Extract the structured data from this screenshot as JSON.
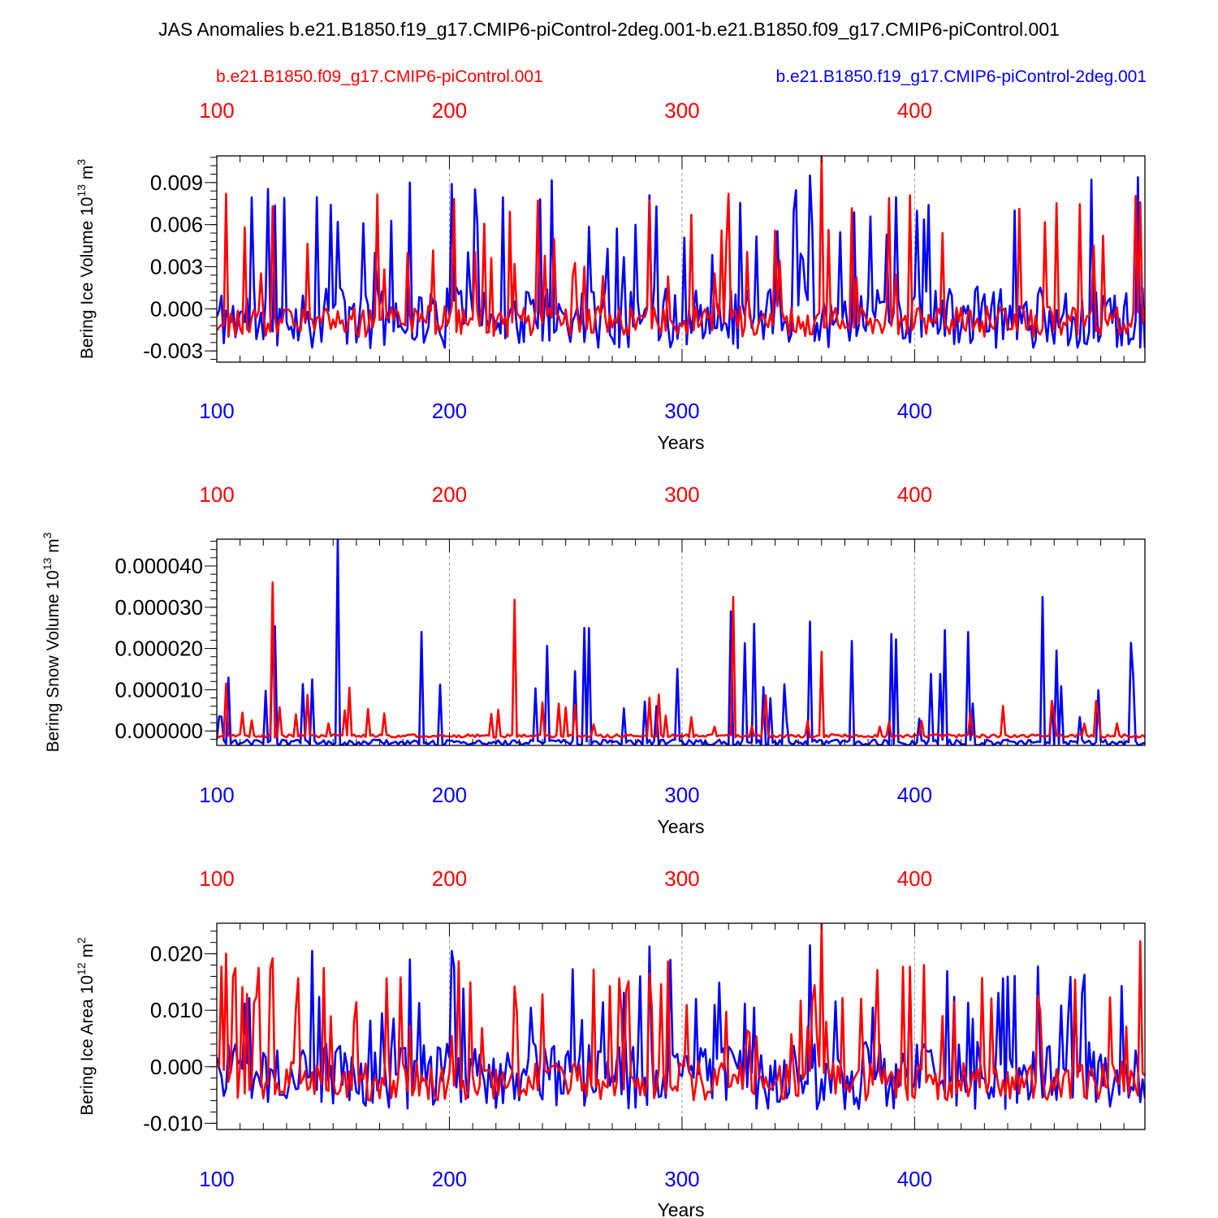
{
  "title": "JAS Anomalies b.e21.B1850.f19_g17.CMIP6-piControl-2deg.001-b.e21.B1850.f09_g17.CMIP6-piControl.001",
  "legend": {
    "red_label": "b.e21.B1850.f09_g17.CMIP6-piControl.001",
    "blue_label": "b.e21.B1850.f19_g17.CMIP6-piControl-2deg.001"
  },
  "colors": {
    "red": "#ff0000",
    "blue": "#0000ff",
    "axis": "#000000",
    "grid": "#9a9a9a"
  },
  "chart_data": [
    {
      "type": "line",
      "ylabel": "Bering Ice Volume",
      "yunit": "10",
      "yunit_exp": "13",
      "yunit_tail": "m",
      "yunit_tail_exp": "3",
      "xlabel": "Years",
      "xlim": [
        100,
        499
      ],
      "ylim": [
        -0.0038,
        0.0109
      ],
      "yticks": [
        -0.003,
        0,
        0.003,
        0.006,
        0.009
      ],
      "ytick_labels": [
        "-0.003",
        "0.000",
        "0.003",
        "0.006",
        "0.009"
      ],
      "ytick_minor_step": 0.0006,
      "xticks": [
        100,
        200,
        300,
        400
      ],
      "xtick_labels": [
        "100",
        "200",
        "300",
        "400"
      ],
      "series": [
        {
          "name": "b.e21.B1850.f19_g17.CMIP6-piControl-2deg.001",
          "color": "blue",
          "seed": 11,
          "lo": -0.0038,
          "hi": 0.0095,
          "base": -0.0006,
          "spread": 0.0022,
          "pk": 0.095,
          "pkmin": 0.0035,
          "pkmax": 0.0095,
          "pin": [
            [
              183,
              0.009
            ],
            [
              201,
              0.0089
            ],
            [
              286,
              0.0081
            ],
            [
              355,
              0.0095
            ],
            [
              152,
              0.0062
            ]
          ]
        },
        {
          "name": "b.e21.B1850.f09_g17.CMIP6-piControl.001",
          "color": "red",
          "seed": 29,
          "lo": -0.0025,
          "hi": 0.0109,
          "base": -0.0009,
          "spread": 0.0011,
          "pk": 0.11,
          "pkmin": 0.002,
          "pkmax": 0.0082,
          "pin": [
            [
              104,
              0.0082
            ],
            [
              124,
              0.0073
            ],
            [
              320,
              0.0082
            ],
            [
              360,
              0.0109
            ],
            [
              398,
              0.0081
            ],
            [
              497,
              0.0076
            ],
            [
              228,
              0.0032
            ],
            [
              304,
              0.0067
            ]
          ]
        }
      ]
    },
    {
      "type": "line",
      "ylabel": "Bering Snow Volume",
      "yunit": "10",
      "yunit_exp": "13",
      "yunit_tail": "m",
      "yunit_tail_exp": "3",
      "xlabel": "Years",
      "xlim": [
        100,
        499
      ],
      "ylim": [
        -3.5e-06,
        4.65e-05
      ],
      "yticks": [
        0,
        1e-05,
        2e-05,
        3e-05,
        4e-05
      ],
      "ytick_labels": [
        "0.000000",
        "0.000010",
        "0.000020",
        "0.000030",
        "0.000040"
      ],
      "ytick_minor_step": 2e-06,
      "xticks": [
        100,
        200,
        300,
        400
      ],
      "xtick_labels": [
        "100",
        "200",
        "300",
        "400"
      ],
      "series": [
        {
          "name": "b.e21.B1850.f19_g17.CMIP6-piControl-2deg.001",
          "color": "blue",
          "seed": 43,
          "lo": -3.5e-06,
          "hi": 4.65e-05,
          "base": -2.8e-06,
          "spread": 7e-07,
          "pk": 0.12,
          "pkmin": 2e-06,
          "pkmax": 2.6e-05,
          "pin": [
            [
              152,
              4.65e-05
            ],
            [
              188,
              2.4e-05
            ],
            [
              321,
              2.9e-05
            ],
            [
              355,
              2.65e-05
            ],
            [
              423,
              2.4e-05
            ],
            [
              455,
              3.25e-05
            ],
            [
              254,
              1.45e-05
            ],
            [
              141,
              1.25e-05
            ],
            [
              390,
              2.35e-05
            ]
          ]
        },
        {
          "name": "b.e21.B1850.f09_g17.CMIP6-piControl.001",
          "color": "red",
          "seed": 57,
          "lo": -2e-06,
          "hi": 3.65e-05,
          "base": -1.2e-06,
          "spread": 4e-07,
          "pk": 0.08,
          "pkmin": 1e-06,
          "pkmax": 9e-06,
          "pin": [
            [
              124,
              3.6e-05
            ],
            [
              228,
              3.18e-05
            ],
            [
              322,
              3.25e-05
            ],
            [
              104,
              1.15e-05
            ],
            [
              360,
              1.92e-05
            ],
            [
              157,
              1.05e-05
            ]
          ]
        }
      ]
    },
    {
      "type": "line",
      "ylabel": "Bering Ice Area",
      "yunit": "10",
      "yunit_exp": "12",
      "yunit_tail": "m",
      "yunit_tail_exp": "2",
      "xlabel": "Years",
      "xlim": [
        100,
        499
      ],
      "ylim": [
        -0.0111,
        0.0254
      ],
      "yticks": [
        -0.01,
        0,
        0.01,
        0.02
      ],
      "ytick_labels": [
        "-0.010",
        "0.000",
        "0.010",
        "0.020"
      ],
      "ytick_minor_step": 0.002,
      "xticks": [
        100,
        200,
        300,
        400
      ],
      "xtick_labels": [
        "100",
        "200",
        "300",
        "400"
      ],
      "series": [
        {
          "name": "b.e21.B1850.f19_g17.CMIP6-piControl-2deg.001",
          "color": "blue",
          "seed": 71,
          "lo": -0.0111,
          "hi": 0.0215,
          "base": -0.0015,
          "spread": 0.006,
          "pk": 0.1,
          "pkmin": 0.008,
          "pkmax": 0.019,
          "pin": [
            [
              141,
              0.0205
            ],
            [
              201,
              0.0205
            ],
            [
              286,
              0.0213
            ],
            [
              355,
              0.0215
            ],
            [
              183,
              0.019
            ],
            [
              489,
              0.0143
            ]
          ]
        },
        {
          "name": "b.e21.B1850.f09_g17.CMIP6-piControl.001",
          "color": "red",
          "seed": 89,
          "lo": -0.007,
          "hi": 0.0254,
          "base": -0.0025,
          "spread": 0.0035,
          "pk": 0.11,
          "pkmin": 0.005,
          "pkmax": 0.019,
          "pin": [
            [
              104,
              0.02
            ],
            [
              124,
              0.0192
            ],
            [
              360,
              0.0254
            ],
            [
              398,
              0.0177
            ],
            [
              497,
              0.0222
            ],
            [
              228,
              0.0142
            ],
            [
              107,
              0.016
            ]
          ]
        }
      ]
    }
  ]
}
